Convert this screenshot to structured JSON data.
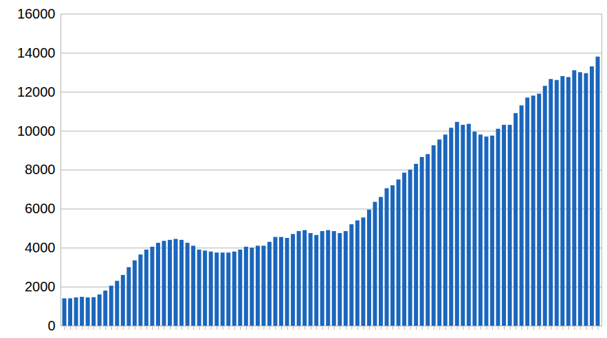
{
  "chart_data": {
    "type": "bar",
    "categories": [
      null,
      null,
      null,
      null,
      null,
      null,
      null,
      null,
      null,
      null,
      null,
      null,
      null,
      null,
      null,
      null,
      null,
      null,
      null,
      null,
      null,
      null,
      null,
      null,
      null,
      null,
      null,
      null,
      null,
      null,
      null,
      null,
      null,
      null,
      null,
      null,
      null,
      null,
      null,
      null,
      null,
      null,
      null,
      null,
      null,
      null,
      null,
      null,
      null,
      null,
      null,
      null,
      null,
      null,
      null,
      null,
      null,
      null,
      null,
      null,
      null,
      null,
      null,
      null,
      null,
      null,
      null,
      null,
      null,
      null,
      null,
      null,
      null,
      null,
      null,
      null,
      null,
      null,
      null,
      null,
      null,
      null,
      null,
      null,
      null,
      null,
      null,
      null,
      null,
      null,
      null,
      null
    ],
    "values": [
      1400,
      1400,
      1450,
      1480,
      1450,
      1460,
      1600,
      1800,
      2050,
      2300,
      2600,
      3000,
      3350,
      3650,
      3900,
      4050,
      4250,
      4350,
      4400,
      4450,
      4400,
      4250,
      4100,
      3900,
      3850,
      3800,
      3750,
      3750,
      3750,
      3800,
      3900,
      4050,
      4000,
      4100,
      4100,
      4300,
      4550,
      4550,
      4500,
      4700,
      4850,
      4900,
      4750,
      4650,
      4850,
      4900,
      4850,
      4750,
      4850,
      5200,
      5400,
      5550,
      5950,
      6350,
      6600,
      7050,
      7200,
      7500,
      7850,
      8000,
      8300,
      8650,
      8800,
      9250,
      9550,
      9800,
      10150,
      10450,
      10300,
      10350,
      9950,
      9800,
      9700,
      9750,
      10100,
      10300,
      10300,
      10900,
      11300,
      11700,
      11800,
      11900,
      12300,
      12650,
      12600,
      12800,
      12750,
      13100,
      13000,
      12950,
      13300,
      13800
    ],
    "color": "#1a66bd",
    "ylim": [
      0,
      16000
    ],
    "yticks": [
      0,
      2000,
      4000,
      6000,
      8000,
      10000,
      12000,
      14000,
      16000
    ],
    "grid": true,
    "tick_labels": "y"
  }
}
